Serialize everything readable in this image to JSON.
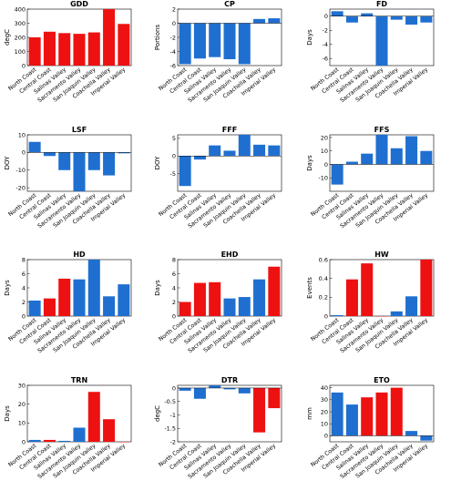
{
  "colors": {
    "blue": "#1f6fd0",
    "red": "#ee1111"
  },
  "chart_data": [
    {
      "type": "bar",
      "title": "GDD",
      "ylabel": "degC",
      "ylim": [
        0,
        400
      ],
      "yticks": [
        0,
        100,
        200,
        300,
        400
      ],
      "categories": [
        "North Coast",
        "Central Coast",
        "Salinas Valley",
        "Sacramento Valley",
        "San Joaquin Valley",
        "Coachella Valley",
        "Imperial Valley"
      ],
      "values": [
        200,
        240,
        230,
        225,
        235,
        415,
        295
      ],
      "bar_colors": [
        "red",
        "red",
        "red",
        "red",
        "red",
        "red",
        "red"
      ]
    },
    {
      "type": "bar",
      "title": "CP",
      "ylabel": "Portions",
      "ylim": [
        -6,
        2
      ],
      "yticks": [
        -6,
        -4,
        -2,
        0,
        2
      ],
      "categories": [
        "North Coast",
        "Central Coast",
        "Salinas Valley",
        "Sacramento Valley",
        "San Joaquin Valley",
        "Coachella Valley",
        "Imperial Valley"
      ],
      "values": [
        -5.8,
        -5.0,
        -4.8,
        -5.1,
        -5.8,
        0.6,
        0.7
      ],
      "bar_colors": [
        "blue",
        "blue",
        "blue",
        "blue",
        "blue",
        "blue",
        "blue"
      ]
    },
    {
      "type": "bar",
      "title": "FD",
      "ylabel": "Days",
      "ylim": [
        -7,
        1
      ],
      "yticks": [
        -6,
        -4,
        -2,
        0
      ],
      "categories": [
        "North Coast",
        "Central Coast",
        "Salinas Valley",
        "Sacramento Valley",
        "San Joaquin Valley",
        "Coachella Valley",
        "Imperial Valley"
      ],
      "values": [
        0.7,
        -0.9,
        0.4,
        -7.0,
        -0.5,
        -1.2,
        -0.9
      ],
      "bar_colors": [
        "blue",
        "blue",
        "blue",
        "blue",
        "blue",
        "blue",
        "blue"
      ]
    },
    {
      "type": "bar",
      "title": "LSF",
      "ylabel": "DOY",
      "ylim": [
        -22,
        10
      ],
      "yticks": [
        -20,
        -10,
        0,
        10
      ],
      "categories": [
        "North Coast",
        "Central Coast",
        "Salinas Valley",
        "Sacramento Valley",
        "San Joaquin Valley",
        "Coachella Valley",
        "Imperial Valley"
      ],
      "values": [
        6,
        -2,
        -10,
        -22,
        -10,
        -13,
        -0.5
      ],
      "bar_colors": [
        "blue",
        "blue",
        "blue",
        "blue",
        "blue",
        "blue",
        "blue"
      ]
    },
    {
      "type": "bar",
      "title": "FFF",
      "ylabel": "DOY",
      "ylim": [
        -10,
        6
      ],
      "yticks": [
        -5,
        0,
        5
      ],
      "categories": [
        "North Coast",
        "Central Coast",
        "Salinas Valley",
        "Sacramento Valley",
        "San Joaquin Valley",
        "Coachella Valley",
        "Imperial Valley"
      ],
      "values": [
        -8.5,
        -1,
        3,
        1.5,
        6,
        3.2,
        3
      ],
      "bar_colors": [
        "blue",
        "blue",
        "blue",
        "blue",
        "blue",
        "blue",
        "blue"
      ]
    },
    {
      "type": "bar",
      "title": "FFS",
      "ylabel": "Days",
      "ylim": [
        -20,
        22
      ],
      "yticks": [
        -10,
        0,
        10,
        20
      ],
      "categories": [
        "North Coast",
        "Central Coast",
        "Salinas Valley",
        "Sacramento Valley",
        "San Joaquin Valley",
        "Coachella Valley",
        "Imperial Valley"
      ],
      "values": [
        -15,
        2,
        8,
        22,
        12,
        21,
        10
      ],
      "bar_colors": [
        "blue",
        "blue",
        "blue",
        "blue",
        "blue",
        "blue",
        "blue"
      ]
    },
    {
      "type": "bar",
      "title": "HD",
      "ylabel": "Days",
      "ylim": [
        0,
        8
      ],
      "yticks": [
        0,
        2,
        4,
        6,
        8
      ],
      "categories": [
        "North Coast",
        "Central Coast",
        "Salinas Valley",
        "Sacramento Valley",
        "San Joaquin Valley",
        "Coachella Valley",
        "Imperial Valley"
      ],
      "values": [
        2.2,
        2.5,
        5.3,
        5.2,
        8.0,
        2.8,
        4.5
      ],
      "bar_colors": [
        "blue",
        "red",
        "red",
        "blue",
        "blue",
        "blue",
        "blue"
      ]
    },
    {
      "type": "bar",
      "title": "EHD",
      "ylabel": "Days",
      "ylim": [
        0,
        8
      ],
      "yticks": [
        0,
        2,
        4,
        6,
        8
      ],
      "categories": [
        "North Coast",
        "Central Coast",
        "Salinas Valley",
        "Sacramento Valley",
        "San Joaquin Valley",
        "Coachella Valley",
        "Imperial Valley"
      ],
      "values": [
        2.0,
        4.7,
        4.8,
        2.5,
        2.7,
        5.2,
        7.0
      ],
      "bar_colors": [
        "red",
        "red",
        "red",
        "blue",
        "blue",
        "blue",
        "red"
      ]
    },
    {
      "type": "bar",
      "title": "HW",
      "ylabel": "Events",
      "ylim": [
        0,
        0.6
      ],
      "yticks": [
        0,
        0.2,
        0.4,
        0.6
      ],
      "categories": [
        "North Coast",
        "Central Coast",
        "Salinas Valley",
        "Sacramento Valley",
        "San Joaquin Valley",
        "Coachella Valley",
        "Imperial Valley"
      ],
      "values": [
        0.01,
        0.39,
        0.56,
        0.0,
        0.05,
        0.21,
        0.62
      ],
      "bar_colors": [
        "blue",
        "red",
        "red",
        "red",
        "blue",
        "blue",
        "red"
      ]
    },
    {
      "type": "bar",
      "title": "TRN",
      "ylabel": "Days",
      "ylim": [
        0,
        30
      ],
      "yticks": [
        0,
        10,
        20,
        30
      ],
      "categories": [
        "North Coast",
        "Central Coast",
        "Salinas Valley",
        "Sacramento Valley",
        "San Joaquin Valley",
        "Coachella Valley",
        "Imperial Valley"
      ],
      "values": [
        1,
        1,
        0.5,
        7.5,
        26.5,
        12,
        0
      ],
      "bar_colors": [
        "blue",
        "red",
        "blue",
        "blue",
        "red",
        "red",
        "red"
      ]
    },
    {
      "type": "bar",
      "title": "DTR",
      "ylabel": "degC",
      "ylim": [
        -2,
        0.1
      ],
      "yticks": [
        -2,
        -1.5,
        -1,
        -0.5,
        0
      ],
      "categories": [
        "North Coast",
        "Central Coast",
        "Salinas Valley",
        "Sacramento Valley",
        "San Joaquin Valley",
        "Coachella Valley",
        "Imperial Valley"
      ],
      "values": [
        -0.1,
        -0.4,
        0.1,
        -0.05,
        -0.2,
        -1.65,
        -0.75
      ],
      "bar_colors": [
        "blue",
        "blue",
        "blue",
        "blue",
        "blue",
        "red",
        "red"
      ]
    },
    {
      "type": "bar",
      "title": "ETO",
      "ylabel": "mm",
      "ylim": [
        -5,
        42
      ],
      "yticks": [
        0,
        10,
        20,
        30,
        40
      ],
      "categories": [
        "North Coast",
        "Central Coast",
        "Salinas Valley",
        "Sacramento Valley",
        "San Joaquin Valley",
        "Coachella Valley",
        "Imperial Valley"
      ],
      "values": [
        36,
        26,
        32,
        36,
        40,
        4,
        -4
      ],
      "bar_colors": [
        "blue",
        "blue",
        "red",
        "red",
        "red",
        "blue",
        "blue"
      ]
    }
  ]
}
